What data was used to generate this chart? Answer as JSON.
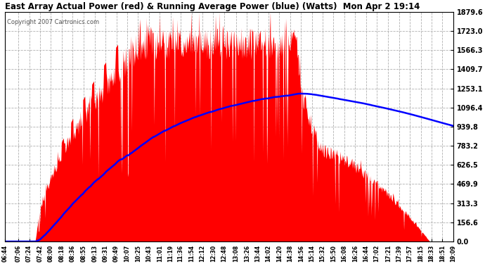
{
  "title": "East Array Actual Power (red) & Running Average Power (blue) (Watts)  Mon Apr 2 19:14",
  "copyright": "Copyright 2007 Cartronics.com",
  "yticks": [
    0.0,
    156.6,
    313.3,
    469.9,
    626.5,
    783.2,
    939.8,
    1096.4,
    1253.1,
    1409.7,
    1566.3,
    1723.0,
    1879.6
  ],
  "ymax": 1879.6,
  "ymin": 0.0,
  "fill_color": "#ff0000",
  "avg_color": "#0000ff",
  "bg_color": "#ffffff",
  "grid_color": "#b0b0b0",
  "title_color": "#000000",
  "xtick_labels": [
    "06:44",
    "07:06",
    "07:24",
    "07:42",
    "08:00",
    "08:18",
    "08:36",
    "08:55",
    "09:13",
    "09:31",
    "09:49",
    "10:07",
    "10:25",
    "10:43",
    "11:01",
    "11:19",
    "11:36",
    "11:54",
    "12:12",
    "12:30",
    "12:48",
    "13:08",
    "13:26",
    "13:44",
    "14:02",
    "14:20",
    "14:38",
    "14:56",
    "15:14",
    "15:32",
    "15:50",
    "16:08",
    "16:26",
    "16:44",
    "17:02",
    "17:21",
    "17:39",
    "17:57",
    "18:15",
    "18:33",
    "18:51",
    "19:09"
  ],
  "n_points": 900
}
